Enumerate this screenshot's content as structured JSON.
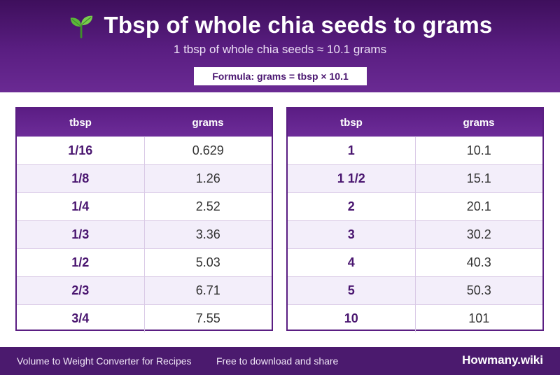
{
  "header": {
    "title": "Tbsp of whole chia seeds to grams",
    "subtitle": "1 tbsp of whole chia seeds ≈ 10.1 grams",
    "formula": "Formula: grams = tbsp × 10.1",
    "icon": "sprout-icon"
  },
  "tables": {
    "left": {
      "headers": [
        "tbsp",
        "grams"
      ],
      "rows": [
        [
          "1/16",
          "0.629"
        ],
        [
          "1/8",
          "1.26"
        ],
        [
          "1/4",
          "2.52"
        ],
        [
          "1/3",
          "3.36"
        ],
        [
          "1/2",
          "5.03"
        ],
        [
          "2/3",
          "6.71"
        ],
        [
          "3/4",
          "7.55"
        ]
      ]
    },
    "right": {
      "headers": [
        "tbsp",
        "grams"
      ],
      "rows": [
        [
          "1",
          "10.1"
        ],
        [
          "1 1/2",
          "15.1"
        ],
        [
          "2",
          "20.1"
        ],
        [
          "3",
          "30.2"
        ],
        [
          "4",
          "40.3"
        ],
        [
          "5",
          "50.3"
        ],
        [
          "10",
          "101"
        ]
      ]
    }
  },
  "footer": {
    "left": "Volume to Weight Converter for Recipes",
    "middle": "Free to download and share",
    "brand": "Howmany.wiki"
  },
  "colors": {
    "header_dark": "#3e0f5c",
    "header_light": "#6a2a93",
    "accent_text": "#4a1670",
    "row_alt": "#f3eefa",
    "footer": "#4b1a6e"
  }
}
